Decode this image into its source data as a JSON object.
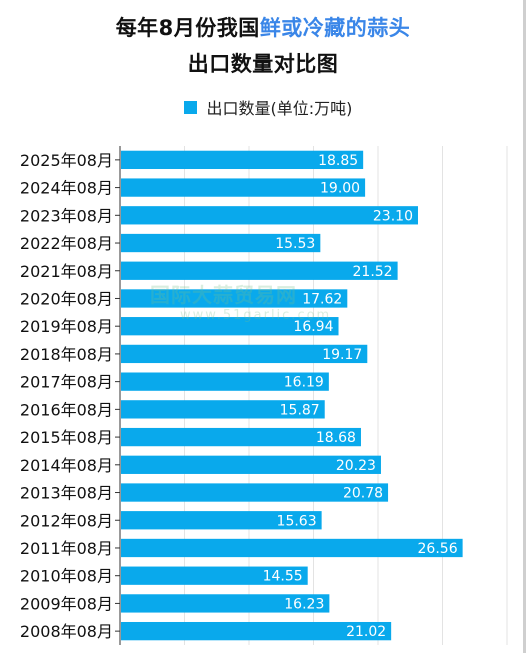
{
  "title": {
    "prefix": "每年8月份我国",
    "highlight": "鲜或冷藏的蒜头",
    "line2": "出口数量对比图"
  },
  "legend": {
    "label": "出口数量(单位:万吨)"
  },
  "watermark": {
    "main": "国际大蒜贸易网",
    "sub": "www.51garlic.com"
  },
  "colors": {
    "bar": "#09a9ec",
    "accent": "#3a86e8"
  },
  "chart_data": {
    "type": "bar",
    "orientation": "horizontal",
    "categories": [
      "2025年08月",
      "2024年08月",
      "2023年08月",
      "2022年08月",
      "2021年08月",
      "2020年08月",
      "2019年08月",
      "2018年08月",
      "2017年08月",
      "2016年08月",
      "2015年08月",
      "2014年08月",
      "2013年08月",
      "2012年08月",
      "2011年08月",
      "2010年08月",
      "2009年08月",
      "2008年08月"
    ],
    "series": [
      {
        "name": "出口数量(单位:万吨)",
        "values": [
          18.85,
          19.0,
          23.1,
          15.53,
          21.52,
          17.62,
          16.94,
          19.17,
          16.19,
          15.87,
          18.68,
          20.23,
          20.78,
          15.63,
          26.56,
          14.55,
          16.23,
          21.02
        ]
      }
    ],
    "value_labels": [
      "18.85",
      "19.00",
      "23.10",
      "15.53",
      "21.52",
      "17.62",
      "16.94",
      "19.17",
      "16.19",
      "15.87",
      "18.68",
      "20.23",
      "20.78",
      "15.63",
      "26.56",
      "14.55",
      "16.23",
      "21.02"
    ],
    "xlim": [
      0,
      30
    ],
    "grid": true,
    "legend_position": "top"
  }
}
